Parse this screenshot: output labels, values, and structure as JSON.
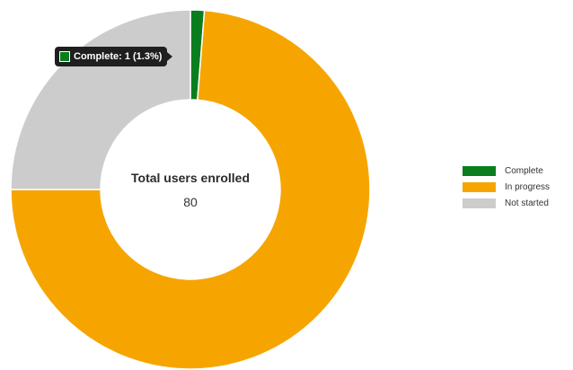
{
  "chart_data": {
    "type": "pie",
    "variant": "donut",
    "center_label": "Total users enrolled",
    "center_value": "80",
    "categories": [
      "Complete",
      "In progress",
      "Not started"
    ],
    "values": [
      1,
      59,
      20
    ],
    "colors": [
      "#0a7e1e",
      "#f6a500",
      "#cccccc"
    ],
    "legend_position": "right",
    "tooltip": {
      "text": "Complete: 1 (1.3%)",
      "color": "#0a7e1e"
    }
  }
}
